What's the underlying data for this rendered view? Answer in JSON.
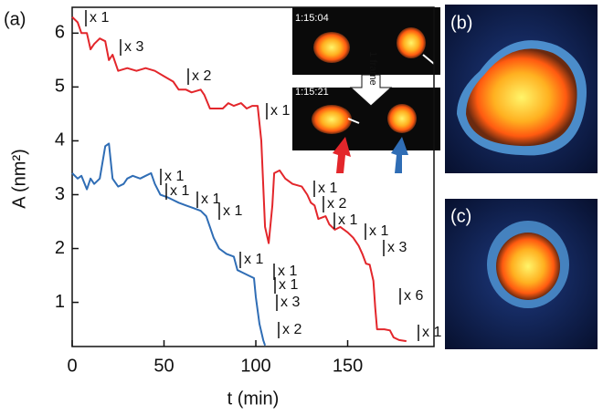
{
  "chart_data": {
    "type": "line",
    "x_label": "t (min)",
    "y_label": "A (nm²)",
    "xlim": [
      0,
      197
    ],
    "ylim": [
      0.18,
      6.48
    ],
    "xticks": [
      0,
      50,
      100,
      150
    ],
    "yticks": [
      1,
      2,
      3,
      4,
      5,
      6
    ],
    "series": [
      {
        "color": "#e3262b",
        "x": [
          0,
          3,
          5,
          8,
          10,
          12,
          15,
          18,
          20,
          22,
          25,
          30,
          35,
          40,
          45,
          50,
          55,
          58,
          62,
          65,
          70,
          72,
          75,
          78,
          82,
          85,
          88,
          92,
          95,
          98,
          101,
          103,
          105,
          107,
          109,
          110,
          113,
          116,
          120,
          125,
          128,
          130,
          132,
          134,
          138,
          140,
          143,
          146,
          150,
          153,
          156,
          158,
          160,
          162,
          164,
          165,
          166,
          170,
          173,
          175,
          178,
          182
        ],
        "values": [
          6.3,
          6.2,
          6.0,
          6.0,
          5.7,
          5.8,
          5.9,
          5.85,
          5.5,
          5.6,
          5.3,
          5.35,
          5.3,
          5.35,
          5.3,
          5.2,
          5.1,
          4.95,
          4.95,
          4.9,
          4.95,
          4.85,
          4.6,
          4.6,
          4.6,
          4.7,
          4.65,
          4.7,
          4.6,
          4.65,
          4.65,
          4.0,
          2.4,
          2.1,
          2.8,
          3.4,
          3.45,
          3.3,
          3.2,
          3.15,
          3.0,
          2.85,
          2.8,
          2.55,
          2.6,
          2.45,
          2.35,
          2.4,
          2.3,
          2.2,
          2.05,
          1.9,
          1.72,
          1.7,
          1.4,
          0.9,
          0.5,
          0.5,
          0.48,
          0.35,
          0.3,
          0.28
        ]
      },
      {
        "color": "#2f6db5",
        "x": [
          0,
          3,
          5,
          8,
          10,
          12,
          15,
          17,
          18,
          20,
          22,
          25,
          28,
          30,
          33,
          37,
          40,
          43,
          45,
          48,
          52,
          55,
          58,
          62,
          66,
          70,
          73,
          75,
          77,
          80,
          84,
          88,
          90,
          93,
          96,
          99,
          100,
          102,
          104,
          105
        ],
        "values": [
          3.4,
          3.3,
          3.35,
          3.1,
          3.3,
          3.2,
          3.3,
          3.7,
          3.9,
          3.95,
          3.3,
          3.15,
          3.2,
          3.3,
          3.35,
          3.3,
          3.35,
          3.4,
          3.2,
          3.0,
          2.95,
          2.9,
          2.85,
          2.8,
          2.75,
          2.7,
          2.6,
          2.4,
          2.2,
          2.0,
          1.9,
          1.85,
          1.6,
          1.55,
          1.5,
          1.45,
          1.1,
          0.6,
          0.3,
          0.2
        ]
      }
    ],
    "annotations": [
      "x 1",
      "x 3",
      "x 2",
      "x 1",
      "x 1",
      "x 2",
      "x 1",
      "x 1",
      "x 3",
      "x 6",
      "x 1",
      "x 1",
      "x 1",
      "x 1",
      "x 1",
      "x 1",
      "x 1",
      "x 1",
      "x 3",
      "x 2"
    ]
  },
  "figure": {
    "panel_a": "(a)",
    "panel_b": "(b)",
    "panel_c": "(c)",
    "time_1": "1:15:04",
    "time_2": "1:15:21",
    "frame": "1 frame"
  }
}
